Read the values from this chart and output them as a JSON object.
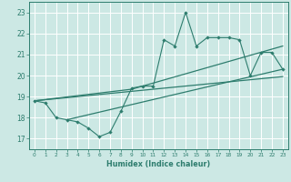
{
  "x_data": [
    0,
    1,
    2,
    3,
    4,
    5,
    6,
    7,
    8,
    9,
    10,
    11,
    12,
    13,
    14,
    15,
    16,
    17,
    18,
    19,
    20,
    21,
    22,
    23
  ],
  "y_main": [
    18.8,
    18.7,
    18.0,
    17.9,
    17.8,
    17.5,
    17.1,
    17.3,
    18.3,
    19.4,
    19.5,
    19.5,
    21.7,
    21.4,
    23.0,
    21.4,
    21.8,
    21.8,
    21.8,
    21.7,
    20.0,
    21.1,
    21.1,
    20.3
  ],
  "line1_x": [
    0,
    9,
    23
  ],
  "line1_y": [
    18.8,
    19.35,
    21.4
  ],
  "line2_x": [
    3,
    23
  ],
  "line2_y": [
    17.9,
    20.3
  ],
  "line3_x": [
    0,
    23
  ],
  "line3_y": [
    18.8,
    19.95
  ],
  "bg_color": "#cce8e4",
  "line_color": "#2e7d6e",
  "grid_color": "#ffffff",
  "ylim": [
    16.5,
    23.5
  ],
  "xlim": [
    -0.5,
    23.5
  ],
  "yticks": [
    17,
    18,
    19,
    20,
    21,
    22,
    23
  ],
  "xticks": [
    0,
    1,
    2,
    3,
    4,
    5,
    6,
    7,
    8,
    9,
    10,
    11,
    12,
    13,
    14,
    15,
    16,
    17,
    18,
    19,
    20,
    21,
    22,
    23
  ],
  "xlabel": "Humidex (Indice chaleur)"
}
